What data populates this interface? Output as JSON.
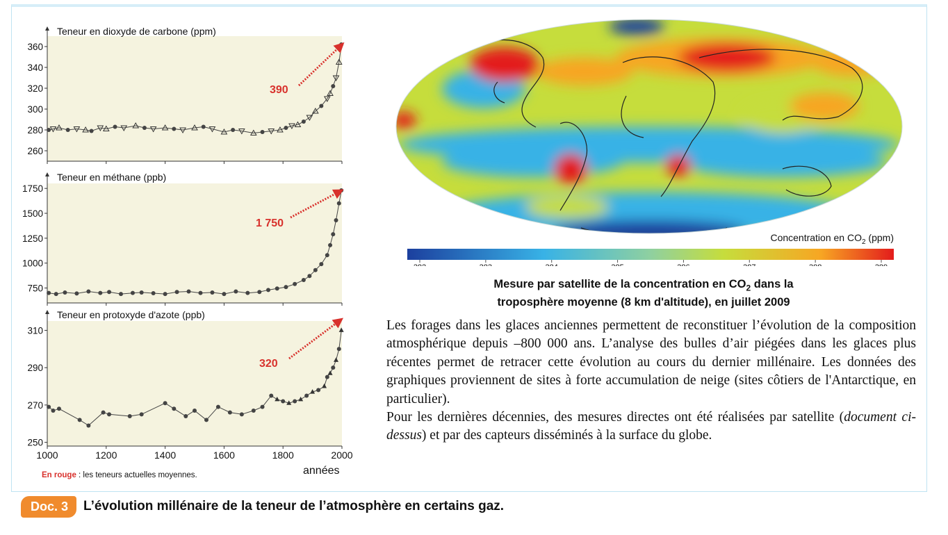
{
  "caption": {
    "badge": "Doc. 3",
    "text": "L’évolution millénaire de la teneur de l’atmosphère en certains gaz."
  },
  "legend_note": {
    "red": "En rouge",
    "rest": " : les teneurs actuelles moyennes."
  },
  "xlabel": "années",
  "map": {
    "title_line1_a": "Mesure par satellite de la concentration en CO",
    "title_line1_sub": "2",
    "title_line1_b": " dans la",
    "title_line2": "troposphère moyenne (8 km d'altitude), en juillet 2009",
    "colorbar_label_a": "Concentration en CO",
    "colorbar_label_sub": "2",
    "colorbar_label_b": " (ppm)",
    "colorbar_ticks": [
      "382",
      "383",
      "384",
      "385",
      "386",
      "387",
      "388",
      "389"
    ],
    "colors": {
      "low": "#1c3f9e",
      "mid_low": "#38b2e6",
      "mid": "#c6dd3c",
      "mid_high": "#f7a623",
      "high": "#e31c1c"
    }
  },
  "text": {
    "p1": "Les forages dans les glaces anciennes permettent de reconstituer l’évolution de la composition atmosphérique depuis –800 000 ans. L’analyse des bulles d’air piégées dans les glaces plus récentes permet de retracer cette évolution au cours du dernier millénaire. Les données des graphiques proviennent de sites à forte accumulation de neige (sites côtiers de l'Antarctique, en particulier).",
    "p2_a": "Pour les dernières décennies, des mesures directes ont été réalisées par satellite (",
    "p2_em": "document ci-dessus",
    "p2_b": ") et par des capteurs disséminés à la surface du globe."
  },
  "chart_data": [
    {
      "type": "scatter",
      "title": "Teneur en dioxyde de carbone (ppm)",
      "xlim": [
        1000,
        2000
      ],
      "ylim": [
        250,
        370
      ],
      "yticks": [
        260,
        280,
        300,
        320,
        340,
        360
      ],
      "annotation": "390",
      "annotation_color": "#d8312c",
      "x": [
        1005,
        1020,
        1040,
        1070,
        1100,
        1130,
        1150,
        1180,
        1200,
        1230,
        1260,
        1300,
        1330,
        1360,
        1400,
        1430,
        1460,
        1500,
        1530,
        1560,
        1600,
        1630,
        1660,
        1700,
        1730,
        1760,
        1790,
        1810,
        1830,
        1850,
        1870,
        1890,
        1910,
        1930,
        1950,
        1960,
        1970,
        1980,
        1990,
        1998
      ],
      "y": [
        280,
        281,
        282,
        280,
        281,
        280,
        279,
        282,
        281,
        283,
        282,
        284,
        282,
        281,
        282,
        281,
        280,
        282,
        283,
        281,
        278,
        280,
        279,
        277,
        278,
        279,
        280,
        282,
        284,
        285,
        288,
        292,
        298,
        303,
        310,
        315,
        322,
        330,
        345,
        362
      ]
    },
    {
      "type": "scatter",
      "title": "Teneur en méthane (ppb)",
      "xlim": [
        1000,
        2000
      ],
      "ylim": [
        600,
        1800
      ],
      "yticks": [
        750,
        1000,
        1250,
        1500,
        1750
      ],
      "annotation": "1 750",
      "annotation_color": "#d8312c",
      "x": [
        1005,
        1030,
        1060,
        1100,
        1140,
        1180,
        1210,
        1250,
        1290,
        1320,
        1360,
        1400,
        1440,
        1480,
        1520,
        1560,
        1600,
        1640,
        1680,
        1720,
        1750,
        1780,
        1810,
        1840,
        1870,
        1890,
        1910,
        1930,
        1950,
        1960,
        1970,
        1980,
        1990,
        1998
      ],
      "y": [
        700,
        690,
        705,
        695,
        715,
        700,
        710,
        690,
        700,
        705,
        698,
        690,
        710,
        715,
        700,
        705,
        690,
        715,
        700,
        710,
        730,
        745,
        760,
        790,
        830,
        870,
        930,
        990,
        1080,
        1180,
        1290,
        1430,
        1600,
        1730
      ]
    },
    {
      "type": "scatter",
      "title": "Teneur en protoxyde d'azote (ppb)",
      "xlim": [
        1000,
        2000
      ],
      "ylim": [
        248,
        315
      ],
      "yticks": [
        250,
        270,
        290,
        310
      ],
      "annotation": "320",
      "annotation_color": "#d8312c",
      "x": [
        1005,
        1020,
        1040,
        1110,
        1140,
        1190,
        1210,
        1280,
        1320,
        1400,
        1430,
        1470,
        1500,
        1540,
        1580,
        1620,
        1660,
        1700,
        1730,
        1760,
        1780,
        1800,
        1820,
        1840,
        1860,
        1880,
        1900,
        1920,
        1940,
        1950,
        1960,
        1970,
        1980,
        1990,
        1998
      ],
      "y": [
        269,
        267,
        268,
        262,
        259,
        266,
        265,
        264,
        265,
        271,
        268,
        264,
        267,
        262,
        269,
        266,
        265,
        267,
        269,
        275,
        273,
        272,
        271,
        272,
        273,
        275,
        277,
        278,
        280,
        285,
        287,
        290,
        294,
        300,
        310
      ]
    }
  ]
}
